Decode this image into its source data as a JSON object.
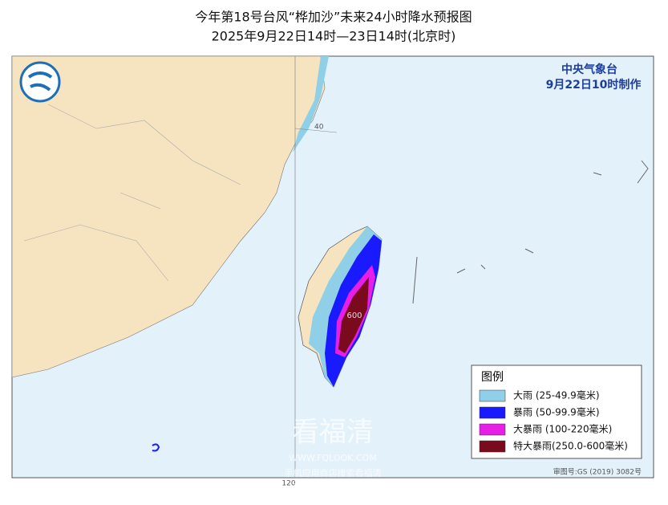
{
  "header": {
    "title": "今年第18号台风“桦加沙”未来24小时降水预报图",
    "subtitle": "2025年9月22日14时—23日14时(北京时)"
  },
  "agency": {
    "name": "中央气象台",
    "made": "9月22日10时制作"
  },
  "map_labels": {
    "lat": "40",
    "max": "600",
    "lon": "120",
    "approval": "审图号:GS (2019) 3082号"
  },
  "legend": {
    "title": "图例",
    "items": [
      {
        "label": "大雨 (25-49.9毫米)",
        "color": "#8fd0e8"
      },
      {
        "label": "暴雨 (50-99.9毫米)",
        "color": "#1a1aff"
      },
      {
        "label": "大暴雨 (100-220毫米)",
        "color": "#e61ee6"
      },
      {
        "label": "特大暴雨(250.0-600毫米)",
        "color": "#7a0a1e"
      }
    ]
  },
  "watermark": {
    "name": "看福清",
    "url": "WWW.FQLOOK.COM",
    "line1": "手机应用商店搜索看福清",
    "line2": "访问下载看福清APP"
  }
}
